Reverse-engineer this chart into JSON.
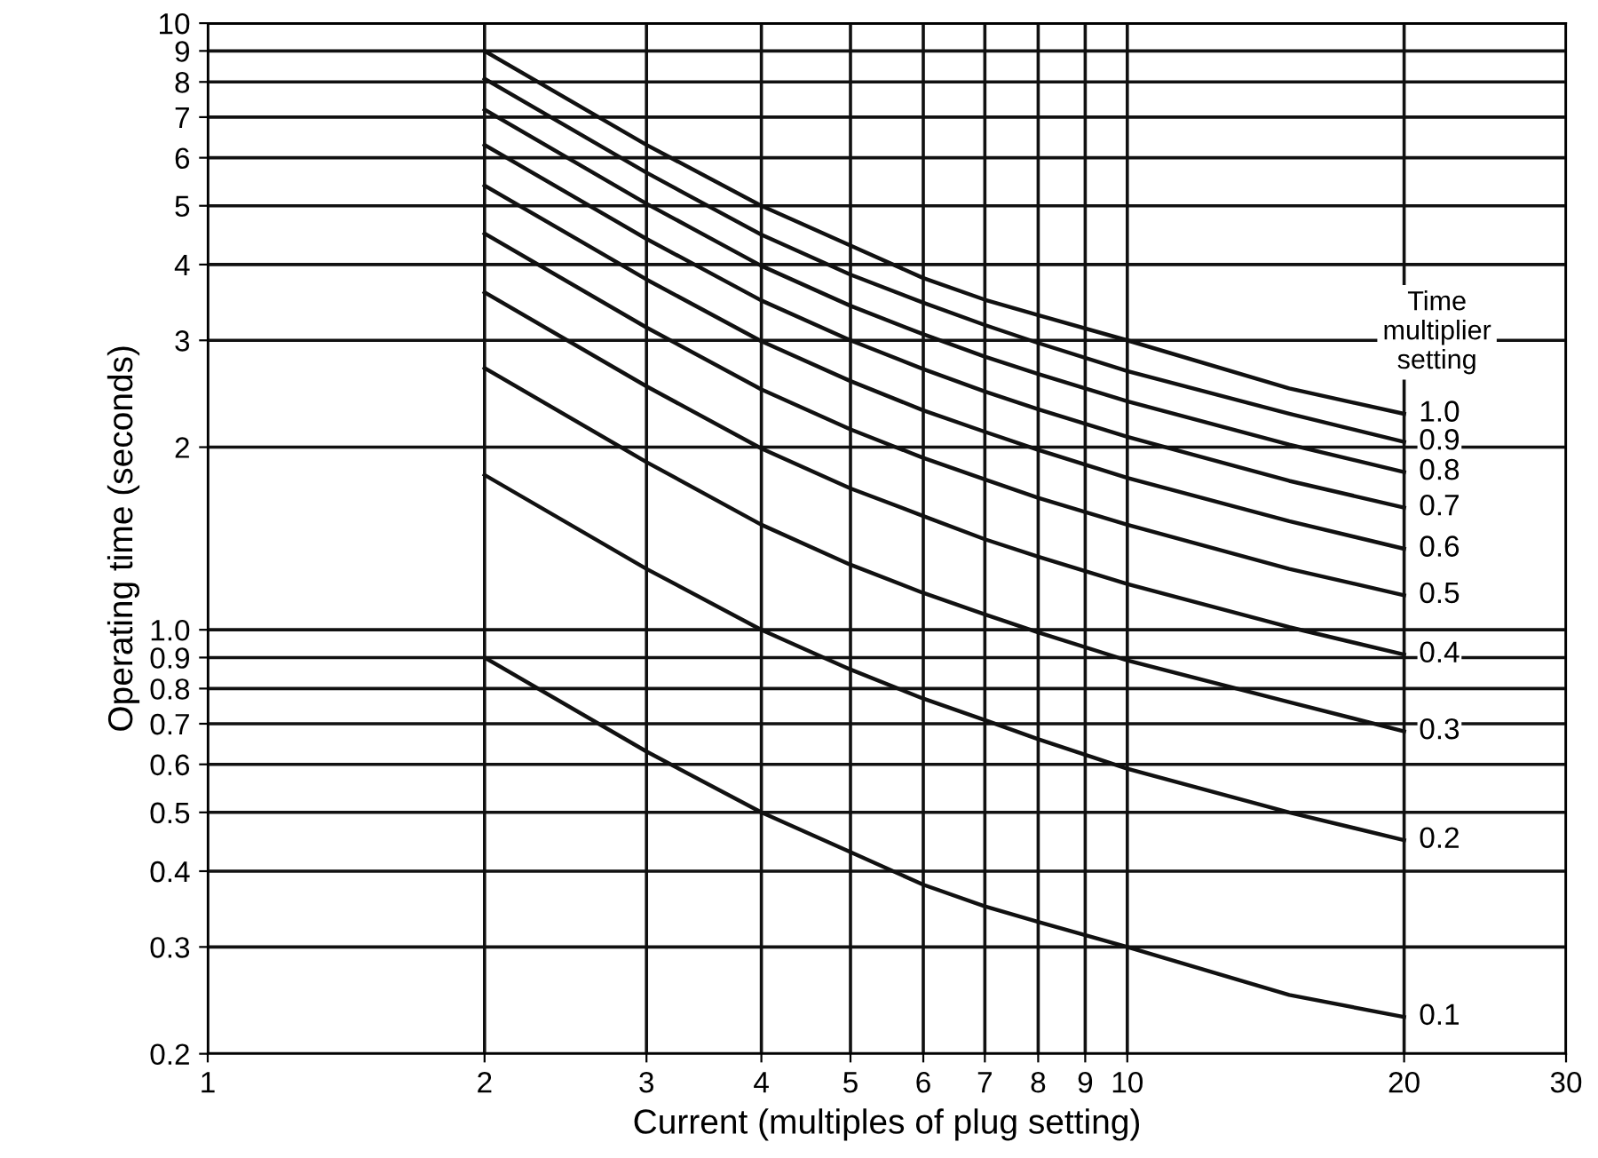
{
  "chart_data": {
    "type": "line",
    "xlabel": "Current (multiples of plug setting)",
    "ylabel": "Operating time (seconds)",
    "annotations": [
      "Time\nmultiplier\nsetting"
    ],
    "x": [
      2,
      3,
      4,
      5,
      6,
      7,
      8,
      10,
      15,
      20
    ],
    "series": [
      {
        "name": "1.0",
        "color": "#111111",
        "values": [
          9.0,
          6.3,
          5.0,
          4.3,
          3.8,
          3.5,
          3.3,
          3.0,
          2.5,
          2.27
        ]
      },
      {
        "name": "0.9",
        "color": "#111111",
        "values": [
          8.1,
          5.67,
          4.48,
          3.85,
          3.46,
          3.18,
          2.97,
          2.67,
          2.27,
          2.04
        ]
      },
      {
        "name": "0.8",
        "color": "#111111",
        "values": [
          7.2,
          5.04,
          3.98,
          3.42,
          3.07,
          2.82,
          2.64,
          2.38,
          2.02,
          1.82
        ]
      },
      {
        "name": "0.7",
        "color": "#111111",
        "values": [
          6.3,
          4.41,
          3.49,
          3.0,
          2.69,
          2.47,
          2.31,
          2.08,
          1.76,
          1.59
        ]
      },
      {
        "name": "0.6",
        "color": "#111111",
        "values": [
          5.4,
          3.78,
          2.99,
          2.57,
          2.3,
          2.12,
          1.98,
          1.78,
          1.51,
          1.36
        ]
      },
      {
        "name": "0.5",
        "color": "#111111",
        "values": [
          4.5,
          3.15,
          2.49,
          2.14,
          1.92,
          1.77,
          1.65,
          1.49,
          1.26,
          1.14
        ]
      },
      {
        "name": "0.4",
        "color": "#111111",
        "values": [
          3.6,
          2.52,
          1.99,
          1.71,
          1.54,
          1.41,
          1.32,
          1.19,
          1.01,
          0.91
        ]
      },
      {
        "name": "0.3",
        "color": "#111111",
        "values": [
          2.7,
          1.89,
          1.49,
          1.28,
          1.15,
          1.06,
          0.99,
          0.89,
          0.76,
          0.68
        ]
      },
      {
        "name": "0.2",
        "color": "#111111",
        "values": [
          1.8,
          1.26,
          1.0,
          0.86,
          0.77,
          0.71,
          0.66,
          0.59,
          0.5,
          0.45
        ]
      },
      {
        "name": "0.1",
        "color": "#111111",
        "values": [
          0.9,
          0.63,
          0.5,
          0.43,
          0.38,
          0.35,
          0.33,
          0.3,
          0.25,
          0.23
        ]
      }
    ],
    "log": "xy",
    "xlim": [
      1,
      30
    ],
    "ylim": [
      0.2,
      10
    ],
    "xticks": [
      1,
      2,
      3,
      4,
      5,
      6,
      7,
      8,
      9,
      10,
      20,
      30
    ],
    "yticks": [
      0.2,
      0.3,
      0.4,
      0.5,
      0.6,
      0.7,
      0.8,
      0.9,
      {
        "value": 1,
        "label": "1.0"
      },
      2,
      3,
      4,
      5,
      6,
      7,
      8,
      9,
      10
    ],
    "grid": true,
    "legend": false,
    "marker": "none",
    "line_style": "solid"
  }
}
